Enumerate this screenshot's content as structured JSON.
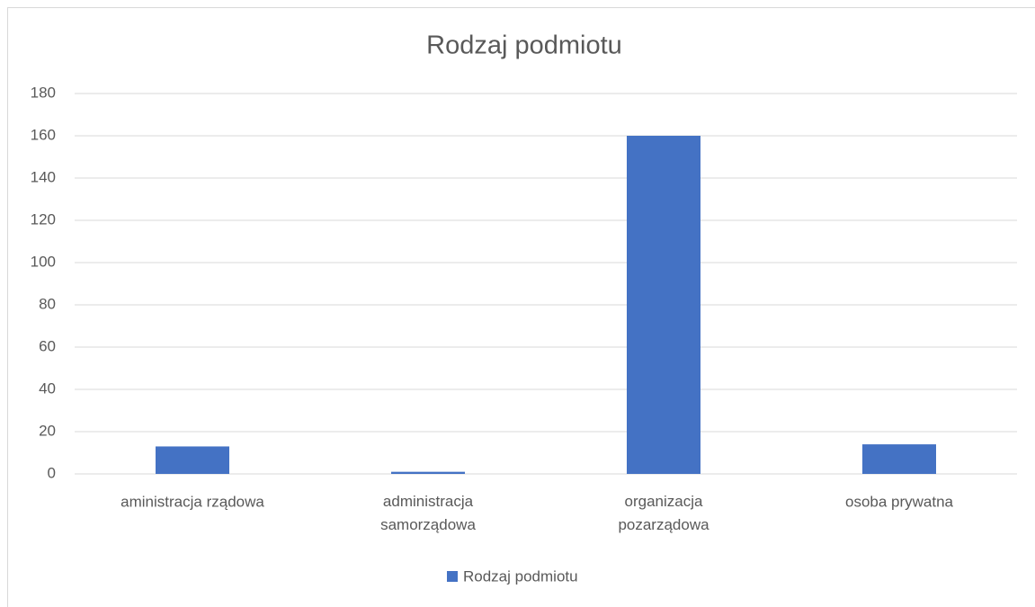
{
  "chart_data": {
    "type": "bar",
    "title": "Rodzaj podmiotu",
    "categories": [
      "aministracja rządowa",
      "administracja samorządowa",
      "organizacja pozarządowa",
      "osoba prywatna"
    ],
    "series": [
      {
        "name": "Rodzaj podmiotu",
        "color": "#4472c4",
        "values": [
          13,
          1,
          160,
          14
        ]
      }
    ],
    "ylim": [
      0,
      180
    ],
    "yticks": [
      0,
      20,
      40,
      60,
      80,
      100,
      120,
      140,
      160,
      180
    ],
    "grid": true,
    "legend": "bottom"
  }
}
